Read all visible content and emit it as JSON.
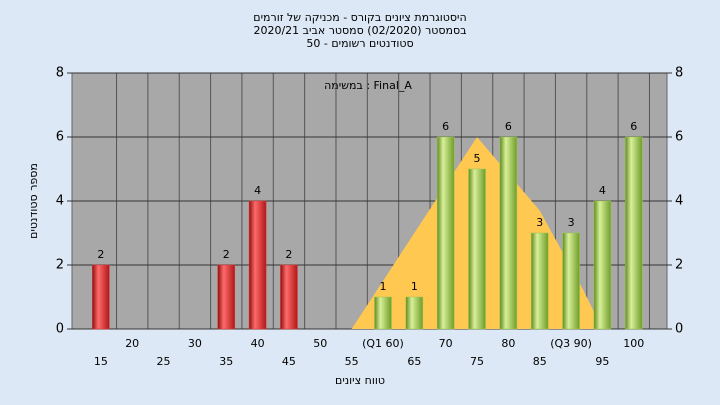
{
  "chart_data": {
    "type": "bar",
    "title": "היסטוגרמת ציונים בקורס - מכניקה של זורמים",
    "subtitle": "בסמסטר  (02/2020)  סמסטר אביב 2020/21",
    "subtitle2": "סטודנטים רשומים - 50",
    "annotation": "במשימה : Final_A",
    "xlabel": "טווח ציונים",
    "ylabel": "מספר סטודנטים",
    "x": [
      15,
      20,
      25,
      30,
      35,
      40,
      45,
      50,
      55,
      60,
      65,
      70,
      75,
      80,
      85,
      90,
      95,
      100
    ],
    "values": [
      2,
      0,
      0,
      0,
      2,
      4,
      2,
      0,
      0,
      1,
      1,
      6,
      5,
      6,
      3,
      3,
      4,
      6
    ],
    "colors": [
      "#e03434",
      "#e03434",
      "#e03434",
      "#e03434",
      "#e03434",
      "#e03434",
      "#e03434",
      "#e03434",
      "#e03434",
      "#9cc94e",
      "#9cc94e",
      "#9cc94e",
      "#9cc94e",
      "#9cc94e",
      "#9cc94e",
      "#9cc94e",
      "#9cc94e",
      "#9cc94e"
    ],
    "area": {
      "color": "#ffc850",
      "x": [
        55,
        65,
        75,
        85,
        92,
        95
      ],
      "values": [
        0,
        3,
        6,
        3.7,
        1.2,
        0
      ]
    },
    "xlim": [
      10.4,
      105.3
    ],
    "xticks": [
      15,
      20,
      25,
      30,
      35,
      40,
      45,
      50,
      55,
      {
        "value": 60,
        "label": "(Q1 60)"
      },
      65,
      70,
      75,
      80,
      85,
      {
        "value": 90,
        "label": "(Q3 90)"
      },
      95,
      100
    ],
    "ylim": [
      0,
      8
    ],
    "yticks": [
      0,
      2,
      4,
      6,
      8
    ],
    "y2lim": [
      0,
      8
    ],
    "y2ticks": [
      0,
      2,
      4,
      6,
      8
    ],
    "grid": true
  }
}
